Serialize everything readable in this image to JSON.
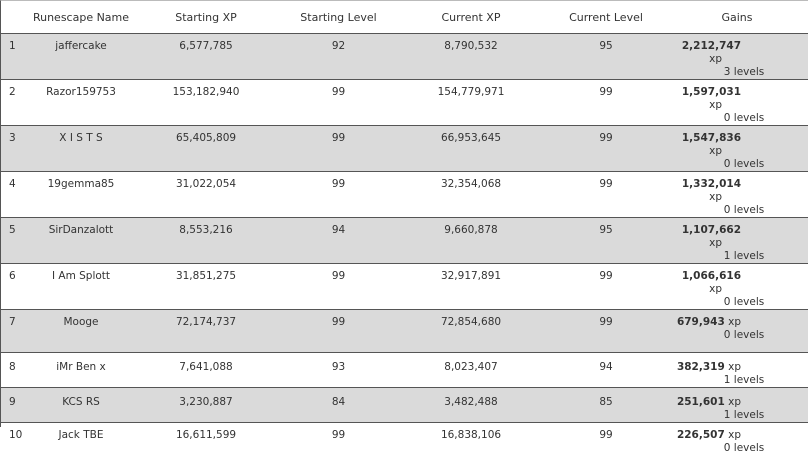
{
  "table": {
    "columns": [
      "Runescape Name",
      "Starting XP",
      "Starting Level",
      "Current XP",
      "Current Level",
      "Gains"
    ],
    "rows": [
      [
        "1",
        "jaffercake",
        "6,577,785",
        "92",
        "8,790,532",
        "95",
        "2,212,747",
        "xp",
        "3 levels"
      ],
      [
        "2",
        "Razor159753",
        "153,182,940",
        "99",
        "154,779,971",
        "99",
        "1,597,031",
        "xp",
        "0 levels"
      ],
      [
        "3",
        "X I S T S",
        "65,405,809",
        "99",
        "66,953,645",
        "99",
        "1,547,836",
        "xp",
        "0 levels"
      ],
      [
        "4",
        "19gemma85",
        "31,022,054",
        "99",
        "32,354,068",
        "99",
        "1,332,014",
        "xp",
        "0 levels"
      ],
      [
        "5",
        "SirDanzalott",
        "8,553,216",
        "94",
        "9,660,878",
        "95",
        "1,107,662",
        "xp",
        "1 levels"
      ],
      [
        "6",
        "I Am Splott",
        "31,851,275",
        "99",
        "32,917,891",
        "99",
        "1,066,616",
        "xp",
        "0 levels"
      ],
      [
        "7",
        "Mooge",
        "72,174,737",
        "99",
        "72,854,680",
        "99",
        "679,943",
        "xp",
        "0 levels"
      ],
      [
        "8",
        "iMr Ben x",
        "7,641,088",
        "93",
        "8,023,407",
        "94",
        "382,319",
        "xp",
        "1 levels"
      ],
      [
        "9",
        "KCS RS",
        "3,230,887",
        "84",
        "3,482,488",
        "85",
        "251,601",
        "xp",
        "1 levels"
      ],
      [
        "10",
        "Jack TBE",
        "16,611,599",
        "99",
        "16,838,106",
        "99",
        "226,507",
        "xp",
        "0 levels"
      ]
    ]
  }
}
